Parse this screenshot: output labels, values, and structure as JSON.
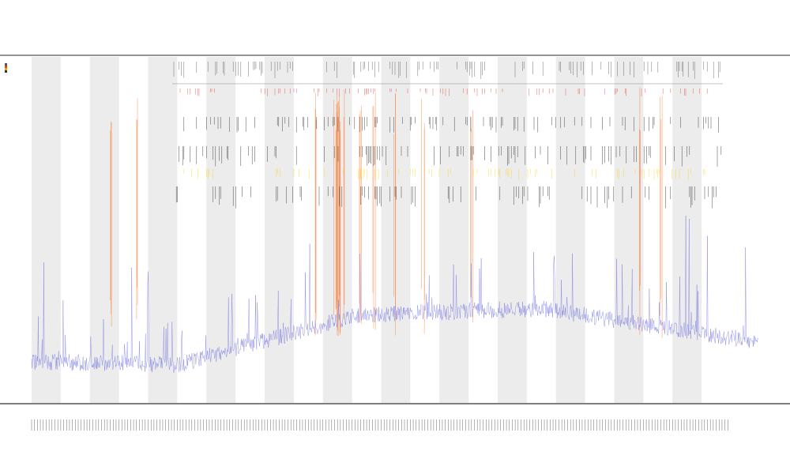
{
  "chart_data": {
    "type": "line",
    "title": "",
    "subtitles": [
      "",
      ""
    ],
    "xlabel": "",
    "ylabel": "",
    "x_tick_count": 240,
    "band_count": 12,
    "grid": false,
    "legend_position": "top-left",
    "legend": [
      {
        "name": "",
        "color": "#555555"
      },
      {
        "name": "",
        "color": "#e04020"
      },
      {
        "name": "",
        "color": "#d8b000"
      },
      {
        "name": "",
        "color": "#333333"
      }
    ],
    "colors": {
      "background": "#ffffff",
      "band": "#ececec",
      "signal": "#6b6be0",
      "hot": "#ff5a00",
      "highlight": "#ffd000",
      "ink": "#111111",
      "red_marks": "#e03030"
    },
    "hotspots_fraction": [
      0.115,
      0.15,
      0.405,
      0.44,
      0.47,
      0.49,
      0.52,
      0.56,
      0.63,
      0.87,
      0.9
    ],
    "signal_baseline_profile": [
      {
        "x": 0.0,
        "level": 0.04
      },
      {
        "x": 0.2,
        "level": 0.03
      },
      {
        "x": 0.25,
        "level": 0.06
      },
      {
        "x": 0.35,
        "level": 0.12
      },
      {
        "x": 0.45,
        "level": 0.18
      },
      {
        "x": 0.7,
        "level": 0.2
      },
      {
        "x": 1.0,
        "level": 0.1
      }
    ]
  }
}
